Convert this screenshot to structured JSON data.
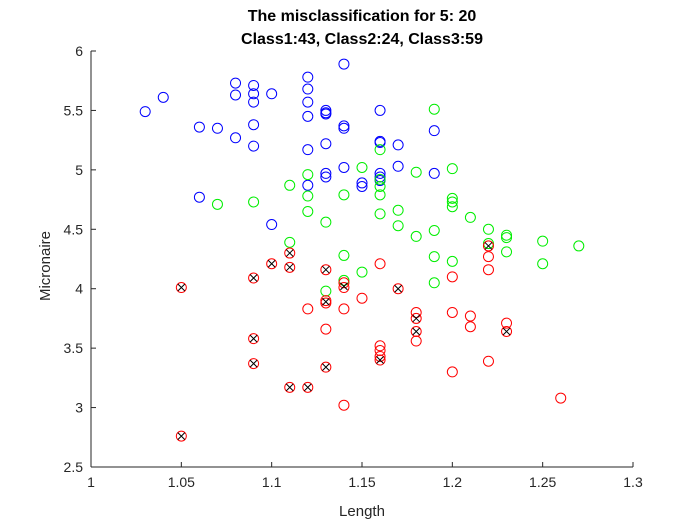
{
  "chart_data": {
    "type": "scatter",
    "title": "The misclassification for 5: 20",
    "subtitle": "Class1:43, Class2:24, Class3:59",
    "xlabel": "Length",
    "ylabel": "Micronaire",
    "xlim": [
      1,
      1.3
    ],
    "ylim": [
      2.5,
      6
    ],
    "xticks": [
      "1",
      "1.05",
      "1.1",
      "1.15",
      "1.2",
      "1.25",
      "1.3"
    ],
    "yticks": [
      "2.5",
      "3",
      "3.5",
      "4",
      "4.5",
      "5",
      "5.5",
      "6"
    ],
    "grid": false,
    "legend": "none",
    "series": [
      {
        "color": "#0000ff",
        "marker": "circle",
        "points": [
          [
            1.03,
            5.49
          ],
          [
            1.04,
            5.61
          ],
          [
            1.06,
            5.36
          ],
          [
            1.06,
            4.77
          ],
          [
            1.07,
            5.35
          ],
          [
            1.08,
            5.73
          ],
          [
            1.08,
            5.63
          ],
          [
            1.08,
            5.27
          ],
          [
            1.09,
            5.71
          ],
          [
            1.09,
            5.64
          ],
          [
            1.09,
            5.57
          ],
          [
            1.09,
            5.38
          ],
          [
            1.09,
            5.2
          ],
          [
            1.1,
            5.64
          ],
          [
            1.1,
            4.54
          ],
          [
            1.12,
            5.78
          ],
          [
            1.12,
            5.68
          ],
          [
            1.12,
            5.57
          ],
          [
            1.12,
            5.45
          ],
          [
            1.12,
            5.17
          ],
          [
            1.12,
            4.87
          ],
          [
            1.13,
            5.5
          ],
          [
            1.13,
            5.48
          ],
          [
            1.13,
            5.47
          ],
          [
            1.13,
            5.22
          ],
          [
            1.13,
            4.97
          ],
          [
            1.13,
            4.94
          ],
          [
            1.14,
            5.89
          ],
          [
            1.14,
            5.37
          ],
          [
            1.14,
            5.35
          ],
          [
            1.14,
            5.02
          ],
          [
            1.15,
            4.89
          ],
          [
            1.15,
            4.86
          ],
          [
            1.16,
            5.5
          ],
          [
            1.16,
            5.24
          ],
          [
            1.16,
            5.23
          ],
          [
            1.16,
            4.97
          ],
          [
            1.16,
            4.94
          ],
          [
            1.17,
            5.21
          ],
          [
            1.17,
            5.03
          ],
          [
            1.19,
            5.33
          ],
          [
            1.19,
            4.97
          ],
          [
            1.16,
            4.91
          ]
        ]
      },
      {
        "color": "#00ee00",
        "marker": "circle",
        "points": [
          [
            1.07,
            4.71
          ],
          [
            1.09,
            4.73
          ],
          [
            1.11,
            4.87
          ],
          [
            1.11,
            4.39
          ],
          [
            1.12,
            4.96
          ],
          [
            1.12,
            4.78
          ],
          [
            1.12,
            4.65
          ],
          [
            1.13,
            4.56
          ],
          [
            1.13,
            3.98
          ],
          [
            1.14,
            4.79
          ],
          [
            1.14,
            4.28
          ],
          [
            1.14,
            4.07
          ],
          [
            1.15,
            5.02
          ],
          [
            1.15,
            4.14
          ],
          [
            1.16,
            5.17
          ],
          [
            1.16,
            4.92
          ],
          [
            1.16,
            4.86
          ],
          [
            1.16,
            4.79
          ],
          [
            1.16,
            4.63
          ],
          [
            1.17,
            4.66
          ],
          [
            1.17,
            4.53
          ],
          [
            1.18,
            4.98
          ],
          [
            1.18,
            4.44
          ],
          [
            1.19,
            5.51
          ],
          [
            1.19,
            4.49
          ],
          [
            1.19,
            4.27
          ],
          [
            1.19,
            4.05
          ],
          [
            1.2,
            5.01
          ],
          [
            1.2,
            4.76
          ],
          [
            1.2,
            4.73
          ],
          [
            1.2,
            4.69
          ],
          [
            1.2,
            4.23
          ],
          [
            1.21,
            4.6
          ],
          [
            1.22,
            4.5
          ],
          [
            1.22,
            4.38
          ],
          [
            1.23,
            4.45
          ],
          [
            1.23,
            4.43
          ],
          [
            1.23,
            4.31
          ],
          [
            1.25,
            4.4
          ],
          [
            1.25,
            4.21
          ],
          [
            1.27,
            4.36
          ]
        ]
      },
      {
        "color": "#ff0000",
        "marker": "circle",
        "points": [
          [
            1.05,
            4.01
          ],
          [
            1.05,
            2.76
          ],
          [
            1.09,
            4.09
          ],
          [
            1.09,
            3.58
          ],
          [
            1.09,
            3.37
          ],
          [
            1.1,
            4.21
          ],
          [
            1.11,
            4.3
          ],
          [
            1.11,
            4.18
          ],
          [
            1.11,
            3.17
          ],
          [
            1.12,
            3.83
          ],
          [
            1.12,
            3.17
          ],
          [
            1.13,
            4.16
          ],
          [
            1.13,
            3.9
          ],
          [
            1.13,
            3.88
          ],
          [
            1.13,
            3.66
          ],
          [
            1.13,
            3.34
          ],
          [
            1.14,
            4.05
          ],
          [
            1.14,
            4.01
          ],
          [
            1.14,
            3.83
          ],
          [
            1.14,
            3.02
          ],
          [
            1.15,
            3.92
          ],
          [
            1.16,
            4.21
          ],
          [
            1.16,
            3.52
          ],
          [
            1.16,
            3.48
          ],
          [
            1.16,
            3.43
          ],
          [
            1.16,
            3.4
          ],
          [
            1.17,
            4.0
          ],
          [
            1.18,
            3.8
          ],
          [
            1.18,
            3.75
          ],
          [
            1.18,
            3.64
          ],
          [
            1.18,
            3.56
          ],
          [
            1.2,
            4.1
          ],
          [
            1.2,
            3.8
          ],
          [
            1.2,
            3.3
          ],
          [
            1.21,
            3.77
          ],
          [
            1.21,
            3.68
          ],
          [
            1.22,
            4.36
          ],
          [
            1.22,
            4.27
          ],
          [
            1.22,
            4.16
          ],
          [
            1.22,
            3.39
          ],
          [
            1.23,
            3.71
          ],
          [
            1.23,
            3.64
          ],
          [
            1.26,
            3.08
          ]
        ]
      },
      {
        "color": "#000000",
        "marker": "x",
        "points": [
          [
            1.05,
            4.01
          ],
          [
            1.05,
            2.76
          ],
          [
            1.09,
            4.09
          ],
          [
            1.09,
            3.58
          ],
          [
            1.09,
            3.37
          ],
          [
            1.1,
            4.21
          ],
          [
            1.11,
            4.3
          ],
          [
            1.11,
            4.18
          ],
          [
            1.11,
            3.17
          ],
          [
            1.12,
            3.17
          ],
          [
            1.13,
            4.16
          ],
          [
            1.13,
            3.89
          ],
          [
            1.13,
            3.34
          ],
          [
            1.14,
            4.02
          ],
          [
            1.16,
            3.4
          ],
          [
            1.17,
            4.0
          ],
          [
            1.18,
            3.75
          ],
          [
            1.18,
            3.64
          ],
          [
            1.22,
            4.36
          ],
          [
            1.23,
            3.64
          ]
        ]
      }
    ]
  }
}
